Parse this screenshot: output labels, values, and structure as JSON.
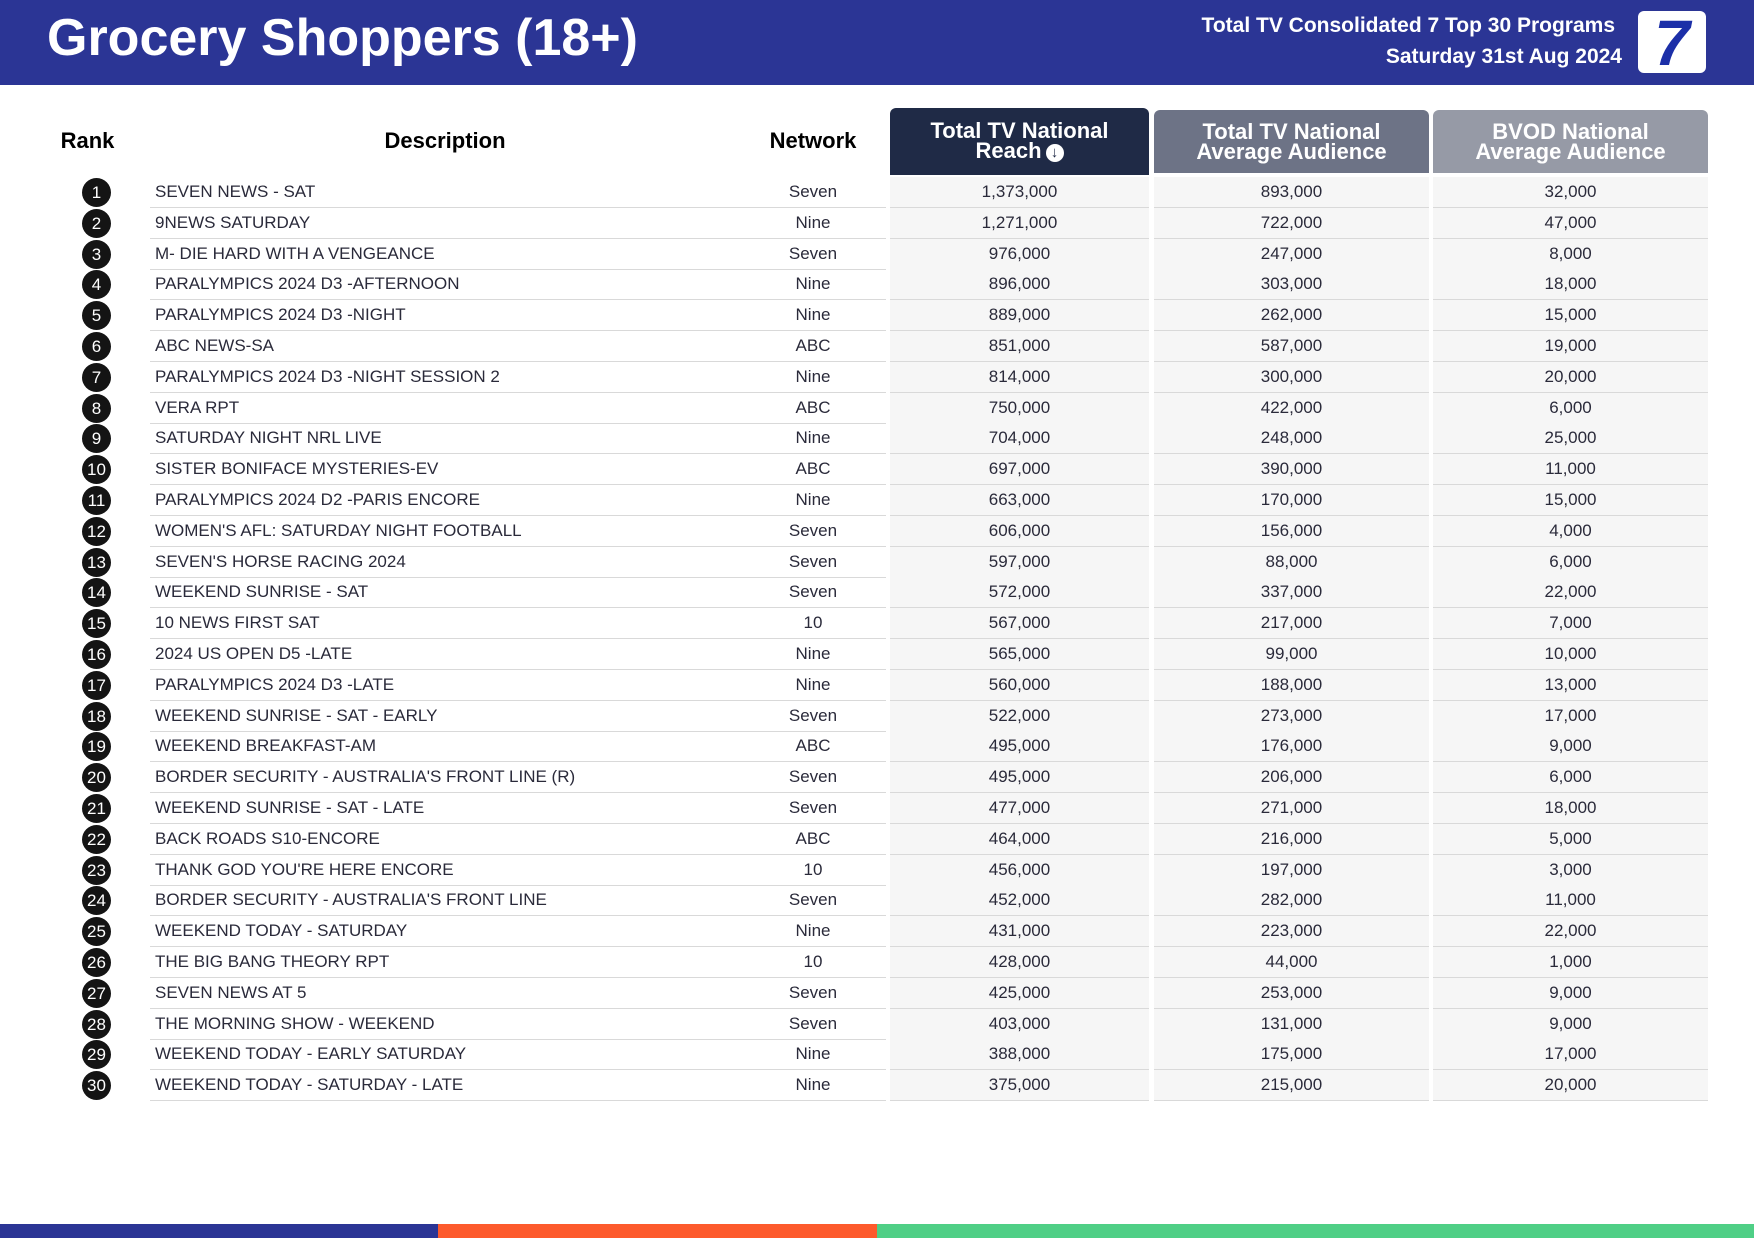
{
  "header": {
    "title": "Grocery Shoppers (18+)",
    "subtitle_line1": "Total TV Consolidated 7 Top 30 Programs",
    "subtitle_line2": "Saturday 31st Aug 2024",
    "logo_text": "7"
  },
  "columns": {
    "rank": "Rank",
    "description": "Description",
    "network": "Network",
    "reach_line1": "Total TV National",
    "reach_line2": "Reach",
    "avg_line1": "Total TV National",
    "avg_line2": "Average Audience",
    "bvod_line1": "BVOD National",
    "bvod_line2": "Average Audience",
    "sort_icon": "arrow-down-circle-icon"
  },
  "rows": [
    {
      "rank": "1",
      "description": "SEVEN NEWS - SAT",
      "network": "Seven",
      "reach": "1,373,000",
      "avg": "893,000",
      "bvod": "32,000"
    },
    {
      "rank": "2",
      "description": "9NEWS SATURDAY",
      "network": "Nine",
      "reach": "1,271,000",
      "avg": "722,000",
      "bvod": "47,000"
    },
    {
      "rank": "3",
      "description": "M- DIE HARD WITH A VENGEANCE",
      "network": "Seven",
      "reach": "976,000",
      "avg": "247,000",
      "bvod": "8,000"
    },
    {
      "rank": "4",
      "description": "PARALYMPICS 2024 D3 -AFTERNOON",
      "network": "Nine",
      "reach": "896,000",
      "avg": "303,000",
      "bvod": "18,000"
    },
    {
      "rank": "5",
      "description": "PARALYMPICS 2024 D3 -NIGHT",
      "network": "Nine",
      "reach": "889,000",
      "avg": "262,000",
      "bvod": "15,000"
    },
    {
      "rank": "6",
      "description": "ABC NEWS-SA",
      "network": "ABC",
      "reach": "851,000",
      "avg": "587,000",
      "bvod": "19,000"
    },
    {
      "rank": "7",
      "description": "PARALYMPICS 2024 D3 -NIGHT SESSION 2",
      "network": "Nine",
      "reach": "814,000",
      "avg": "300,000",
      "bvod": "20,000"
    },
    {
      "rank": "8",
      "description": "VERA RPT",
      "network": "ABC",
      "reach": "750,000",
      "avg": "422,000",
      "bvod": "6,000"
    },
    {
      "rank": "9",
      "description": "SATURDAY NIGHT NRL LIVE",
      "network": "Nine",
      "reach": "704,000",
      "avg": "248,000",
      "bvod": "25,000"
    },
    {
      "rank": "10",
      "description": "SISTER BONIFACE MYSTERIES-EV",
      "network": "ABC",
      "reach": "697,000",
      "avg": "390,000",
      "bvod": "11,000"
    },
    {
      "rank": "11",
      "description": "PARALYMPICS 2024 D2 -PARIS ENCORE",
      "network": "Nine",
      "reach": "663,000",
      "avg": "170,000",
      "bvod": "15,000"
    },
    {
      "rank": "12",
      "description": "WOMEN'S AFL: SATURDAY NIGHT FOOTBALL",
      "network": "Seven",
      "reach": "606,000",
      "avg": "156,000",
      "bvod": "4,000"
    },
    {
      "rank": "13",
      "description": "SEVEN'S HORSE RACING 2024",
      "network": "Seven",
      "reach": "597,000",
      "avg": "88,000",
      "bvod": "6,000"
    },
    {
      "rank": "14",
      "description": "WEEKEND SUNRISE - SAT",
      "network": "Seven",
      "reach": "572,000",
      "avg": "337,000",
      "bvod": "22,000"
    },
    {
      "rank": "15",
      "description": "10 NEWS FIRST SAT",
      "network": "10",
      "reach": "567,000",
      "avg": "217,000",
      "bvod": "7,000"
    },
    {
      "rank": "16",
      "description": "2024 US OPEN D5 -LATE",
      "network": "Nine",
      "reach": "565,000",
      "avg": "99,000",
      "bvod": "10,000"
    },
    {
      "rank": "17",
      "description": "PARALYMPICS 2024 D3 -LATE",
      "network": "Nine",
      "reach": "560,000",
      "avg": "188,000",
      "bvod": "13,000"
    },
    {
      "rank": "18",
      "description": "WEEKEND SUNRISE - SAT - EARLY",
      "network": "Seven",
      "reach": "522,000",
      "avg": "273,000",
      "bvod": "17,000"
    },
    {
      "rank": "19",
      "description": "WEEKEND BREAKFAST-AM",
      "network": "ABC",
      "reach": "495,000",
      "avg": "176,000",
      "bvod": "9,000"
    },
    {
      "rank": "20",
      "description": "BORDER SECURITY - AUSTRALIA'S FRONT LINE (R)",
      "network": "Seven",
      "reach": "495,000",
      "avg": "206,000",
      "bvod": "6,000"
    },
    {
      "rank": "21",
      "description": "WEEKEND SUNRISE - SAT - LATE",
      "network": "Seven",
      "reach": "477,000",
      "avg": "271,000",
      "bvod": "18,000"
    },
    {
      "rank": "22",
      "description": "BACK ROADS S10-ENCORE",
      "network": "ABC",
      "reach": "464,000",
      "avg": "216,000",
      "bvod": "5,000"
    },
    {
      "rank": "23",
      "description": "THANK GOD YOU'RE HERE ENCORE",
      "network": "10",
      "reach": "456,000",
      "avg": "197,000",
      "bvod": "3,000"
    },
    {
      "rank": "24",
      "description": "BORDER SECURITY - AUSTRALIA'S FRONT LINE",
      "network": "Seven",
      "reach": "452,000",
      "avg": "282,000",
      "bvod": "11,000"
    },
    {
      "rank": "25",
      "description": "WEEKEND TODAY - SATURDAY",
      "network": "Nine",
      "reach": "431,000",
      "avg": "223,000",
      "bvod": "22,000"
    },
    {
      "rank": "26",
      "description": "THE BIG BANG THEORY RPT",
      "network": "10",
      "reach": "428,000",
      "avg": "44,000",
      "bvod": "1,000"
    },
    {
      "rank": "27",
      "description": "SEVEN NEWS AT 5",
      "network": "Seven",
      "reach": "425,000",
      "avg": "253,000",
      "bvod": "9,000"
    },
    {
      "rank": "28",
      "description": "THE MORNING SHOW - WEEKEND",
      "network": "Seven",
      "reach": "403,000",
      "avg": "131,000",
      "bvod": "9,000"
    },
    {
      "rank": "29",
      "description": "WEEKEND TODAY - EARLY SATURDAY",
      "network": "Nine",
      "reach": "388,000",
      "avg": "175,000",
      "bvod": "17,000"
    },
    {
      "rank": "30",
      "description": "WEEKEND TODAY - SATURDAY - LATE",
      "network": "Nine",
      "reach": "375,000",
      "avg": "215,000",
      "bvod": "20,000"
    }
  ],
  "footer_colors": [
    "#2b3595",
    "#fd5a2c",
    "#4fcf86"
  ]
}
